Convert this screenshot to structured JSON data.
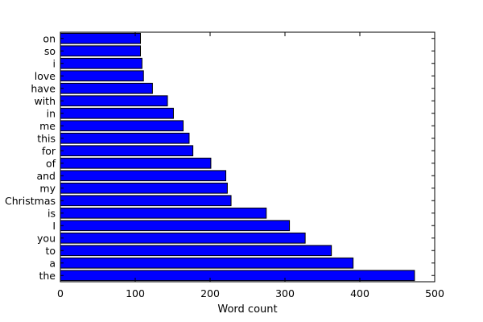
{
  "chart_data": {
    "type": "bar",
    "orientation": "horizontal",
    "categories": [
      "the",
      "a",
      "to",
      "you",
      "I",
      "is",
      "Christmas",
      "my",
      "and",
      "of",
      "for",
      "this",
      "me",
      "in",
      "with",
      "have",
      "love",
      "i",
      "so",
      "on"
    ],
    "values": [
      473,
      391,
      362,
      327,
      306,
      275,
      228,
      223,
      221,
      201,
      177,
      172,
      164,
      151,
      143,
      123,
      111,
      109,
      107,
      107
    ],
    "xlabel": "Word count",
    "ylabel": "",
    "title": "",
    "xlim": [
      0,
      500
    ],
    "xticks": [
      0,
      100,
      200,
      300,
      400,
      500
    ],
    "grid": false,
    "bar_color": "#0000ff",
    "edge_color": "#000000"
  }
}
